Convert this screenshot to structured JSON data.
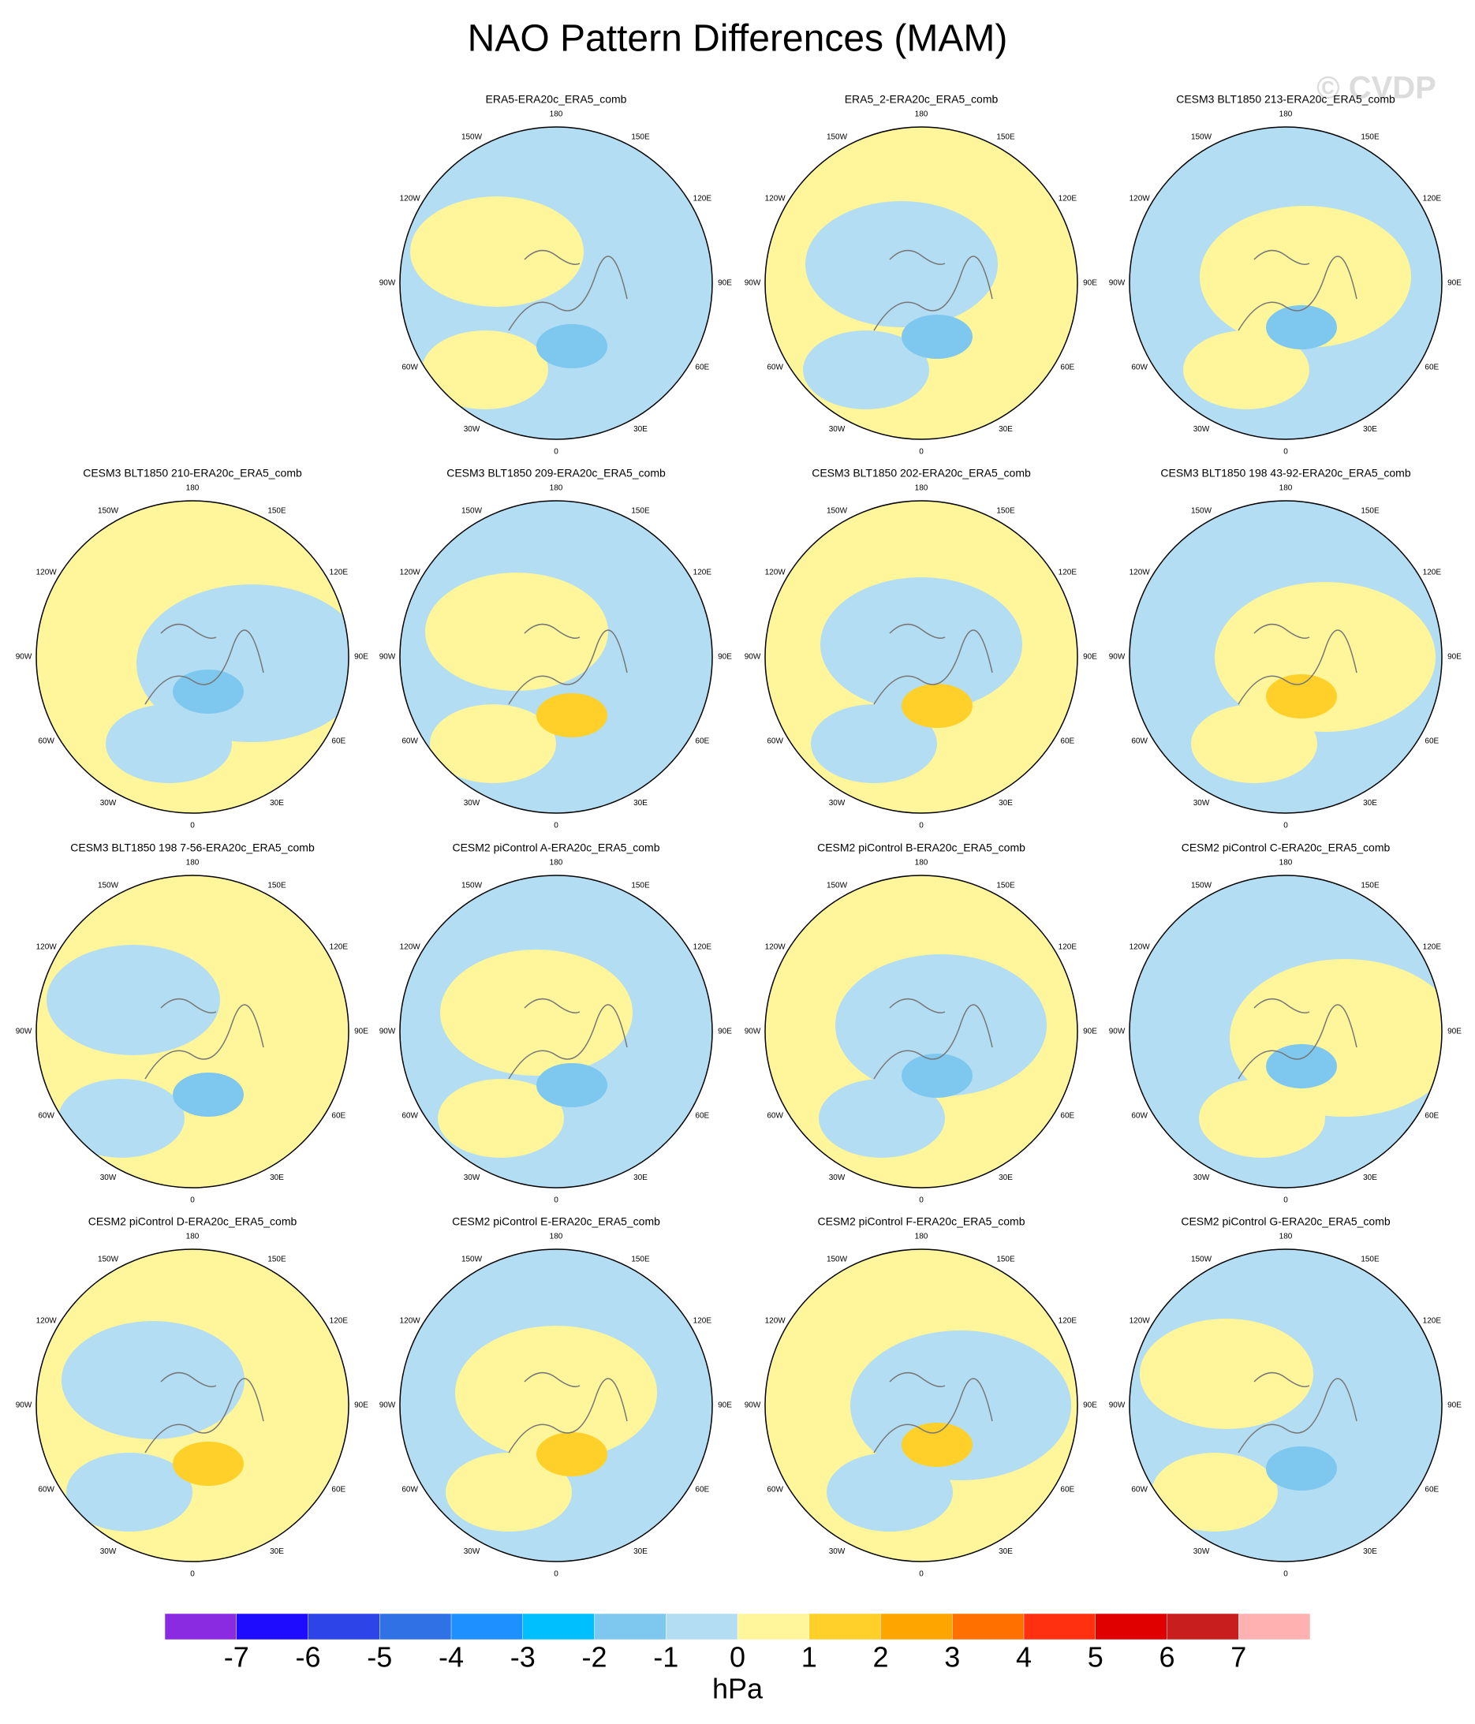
{
  "title": "NAO Pattern Differences (MAM)",
  "watermark": "© CVDP",
  "panels": [
    {
      "title": "ERA5-ERA20c_ERA5_comb"
    },
    {
      "title": "ERA5_2-ERA20c_ERA5_comb"
    },
    {
      "title": "CESM3 BLT1850 213-ERA20c_ERA5_comb"
    },
    {
      "title": "CESM3 BLT1850 210-ERA20c_ERA5_comb"
    },
    {
      "title": "CESM3 BLT1850 209-ERA20c_ERA5_comb"
    },
    {
      "title": "CESM3 BLT1850 202-ERA20c_ERA5_comb"
    },
    {
      "title": "CESM3 BLT1850 198 43-92-ERA20c_ERA5_comb"
    },
    {
      "title": "CESM3 BLT1850 198 7-56-ERA20c_ERA5_comb"
    },
    {
      "title": "CESM2 piControl A-ERA20c_ERA5_comb"
    },
    {
      "title": "CESM2 piControl B-ERA20c_ERA5_comb"
    },
    {
      "title": "CESM2 piControl C-ERA20c_ERA5_comb"
    },
    {
      "title": "CESM2 piControl D-ERA20c_ERA5_comb"
    },
    {
      "title": "CESM2 piControl E-ERA20c_ERA5_comb"
    },
    {
      "title": "CESM2 piControl F-ERA20c_ERA5_comb"
    },
    {
      "title": "CESM2 piControl G-ERA20c_ERA5_comb"
    }
  ],
  "longitude_labels": [
    "180",
    "150E",
    "120E",
    "90E",
    "60E",
    "30E",
    "0",
    "30W",
    "60W",
    "90W",
    "120W",
    "150W"
  ],
  "colorbar": {
    "levels": [
      -7,
      -6,
      -5,
      -4,
      -3,
      -2,
      -1,
      0,
      1,
      2,
      3,
      4,
      5,
      6,
      7
    ],
    "colors": [
      "#8a2be2",
      "#1e0cff",
      "#2c44e8",
      "#3072e6",
      "#1e90ff",
      "#00bfff",
      "#7ec8f0",
      "#b3ddf2",
      "#fff59a",
      "#ffd02a",
      "#ffa500",
      "#ff7000",
      "#ff3010",
      "#e00000",
      "#c81e1e",
      "#ffb0b0"
    ],
    "unit": "hPa"
  }
}
